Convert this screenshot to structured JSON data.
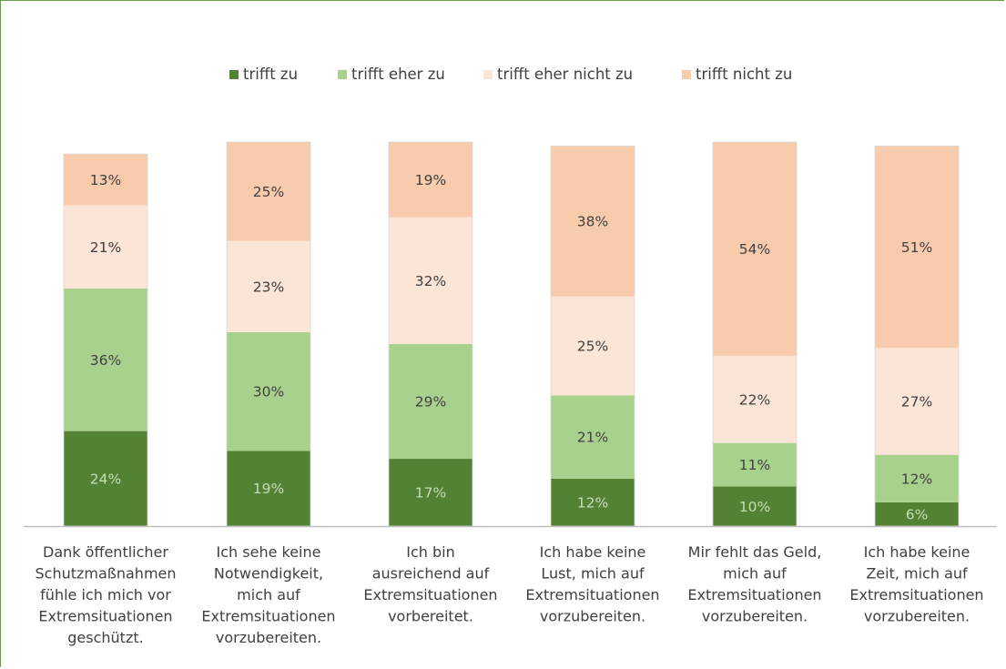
{
  "chart_data": {
    "type": "bar",
    "stacked": true,
    "normalized": true,
    "categories": [
      [
        "Dank öffentlicher",
        "Schutzmaßnahmen",
        "fühle ich mich vor",
        "Extremsituationen",
        "geschützt."
      ],
      [
        "Ich sehe keine",
        "Notwendigkeit,",
        "mich auf",
        "Extremsituationen",
        "vorzubereiten."
      ],
      [
        "Ich bin",
        "ausreichend auf",
        "Extremsituationen",
        "vorbereitet."
      ],
      [
        "Ich habe keine",
        "Lust, mich auf",
        "Extremsituationen",
        "vorzubereiten."
      ],
      [
        "Mir fehlt das Geld,",
        "mich auf",
        "Extremsituationen",
        "vorzubereiten."
      ],
      [
        "Ich habe keine",
        "Zeit, mich auf",
        "Extremsituationen",
        "vorzubereiten."
      ]
    ],
    "series": [
      {
        "name": "trifft zu",
        "color": "#548235",
        "label_color": "#c5dcb5",
        "values": [
          24,
          19,
          17,
          12,
          10,
          6
        ]
      },
      {
        "name": "trifft eher zu",
        "color": "#a9d18e",
        "label_color": "#404040",
        "values": [
          36,
          30,
          29,
          21,
          11,
          12
        ]
      },
      {
        "name": "trifft eher nicht zu",
        "color": "#fbe5d6",
        "label_color": "#404040",
        "values": [
          21,
          23,
          32,
          25,
          22,
          27
        ]
      },
      {
        "name": "trifft nicht zu",
        "color": "#f8cbad",
        "label_color": "#404040",
        "values": [
          13,
          25,
          19,
          38,
          54,
          51
        ]
      }
    ],
    "value_suffix": "%",
    "legend_position": "top",
    "grid": false,
    "axis_color": "#bfbfbf"
  }
}
